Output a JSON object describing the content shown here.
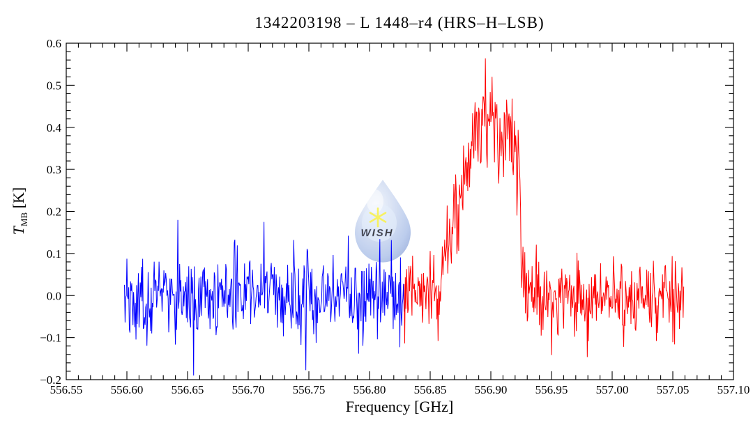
{
  "figure": {
    "watermark": {
      "text": "WISH",
      "icon": "water-drop-with-star",
      "drop_color": "#b9c9ea",
      "drop_edge_color": "#8fa6d9",
      "text_color": "#f0e63c",
      "star_color": "#f5ee35"
    }
  },
  "chart_data": {
    "type": "line",
    "title": "1342203198 – L 1448–r4 (HRS–H–LSB)",
    "xlabel": "Frequency [GHz]",
    "ylabel": {
      "symbol": "T",
      "subscript": "MB",
      "unit": " [K]"
    },
    "xlim": [
      556.55,
      557.1
    ],
    "ylim": [
      -0.2,
      0.6
    ],
    "grid": false,
    "legend": "none",
    "background": "#ffffff",
    "frame_color": "#000000",
    "x_axis": {
      "major_tick_values": [
        556.55,
        556.6,
        556.65,
        556.7,
        556.75,
        556.8,
        556.85,
        556.9,
        556.95,
        557.0,
        557.05,
        557.1
      ],
      "major_tick_labels": [
        "556.55",
        "556.60",
        "556.65",
        "556.70",
        "556.75",
        "556.80",
        "556.85",
        "556.90",
        "556.95",
        "557.00",
        "557.05",
        "557.10"
      ],
      "major_step": 0.05,
      "minor_step": 0.01
    },
    "y_axis": {
      "major_tick_values": [
        -0.2,
        -0.1,
        0.0,
        0.1,
        0.2,
        0.3,
        0.4,
        0.5,
        0.6
      ],
      "major_tick_labels": [
        "−0.2",
        "−0.1",
        "0.0",
        "0.1",
        "0.2",
        "0.3",
        "0.4",
        "0.5",
        "0.6"
      ],
      "major_step": 0.1,
      "minor_step": 0.02
    },
    "series": [
      {
        "name": "spectrum-segment-blue",
        "color": "#0000ff",
        "x_start": 556.598,
        "x_end": 556.8285,
        "channel_width": 0.0005,
        "baseline": 0.0,
        "noise_rms": 0.047,
        "profile_points": [
          [
            556.598,
            0.0
          ],
          [
            556.8285,
            0.0
          ]
        ]
      },
      {
        "name": "spectrum-segment-red",
        "color": "#ff0000",
        "x_start": 556.8285,
        "x_end": 557.059,
        "channel_width": 0.0005,
        "baseline": 0.0,
        "noise_rms": 0.047,
        "emission_line": {
          "peak_frequency": 556.901,
          "peak_T": 0.52,
          "rise_start": 556.845,
          "sharp_fall_edge": 556.925
        },
        "profile_points": [
          [
            556.8285,
            0.0
          ],
          [
            556.84,
            0.01
          ],
          [
            556.85,
            0.03
          ],
          [
            556.858,
            0.06
          ],
          [
            556.865,
            0.105
          ],
          [
            556.872,
            0.18
          ],
          [
            556.878,
            0.27
          ],
          [
            556.883,
            0.33
          ],
          [
            556.887,
            0.365
          ],
          [
            556.891,
            0.375
          ],
          [
            556.895,
            0.405
          ],
          [
            556.899,
            0.43
          ],
          [
            556.902,
            0.435
          ],
          [
            556.905,
            0.4
          ],
          [
            556.908,
            0.36
          ],
          [
            556.911,
            0.365
          ],
          [
            556.914,
            0.395
          ],
          [
            556.917,
            0.4
          ],
          [
            556.92,
            0.37
          ],
          [
            556.922,
            0.33
          ],
          [
            556.924,
            0.25
          ],
          [
            556.9255,
            0.13
          ],
          [
            556.927,
            0.04
          ],
          [
            556.929,
            0.01
          ],
          [
            556.932,
            0.0
          ],
          [
            557.059,
            0.0
          ]
        ]
      }
    ],
    "notable_points": [
      {
        "series": 0,
        "x": 556.655,
        "y": -0.19
      },
      {
        "series": 0,
        "x": 556.713,
        "y": 0.175
      },
      {
        "series": 1,
        "x": 556.901,
        "y": 0.52
      }
    ]
  }
}
